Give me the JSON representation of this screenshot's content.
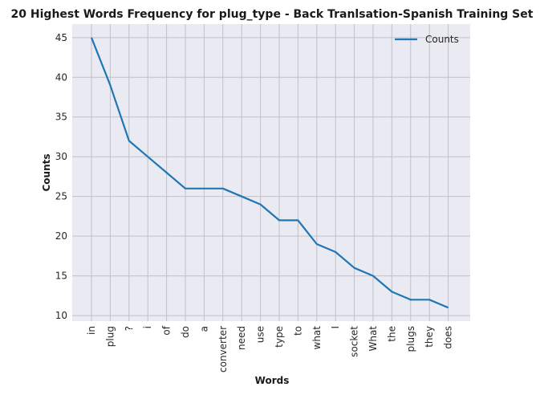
{
  "chart_data": {
    "type": "line",
    "title": "20 Highest Words Frequency for plug_type - Back Tranlsation-Spanish Training Set",
    "xlabel": "Words",
    "ylabel": "Counts",
    "categories": [
      "in",
      "plug",
      "?",
      "i",
      "of",
      "do",
      "a",
      "converter",
      "need",
      "use",
      "type",
      "to",
      "what",
      "I",
      "socket",
      "What",
      "the",
      "plugs",
      "they",
      "does"
    ],
    "series": [
      {
        "name": "Counts",
        "values": [
          45,
          39,
          32,
          30,
          28,
          26,
          26,
          26,
          25,
          24,
          22,
          22,
          19,
          18,
          16,
          15,
          13,
          12,
          12,
          11
        ],
        "color": "#1f77b4"
      }
    ],
    "ylim": [
      9.3,
      46.7
    ],
    "yticks": [
      10,
      15,
      20,
      25,
      30,
      35,
      40,
      45
    ],
    "grid": true,
    "legend": "top-right",
    "background": "#eaeaf2",
    "grid_color": "#c0c0c6"
  }
}
